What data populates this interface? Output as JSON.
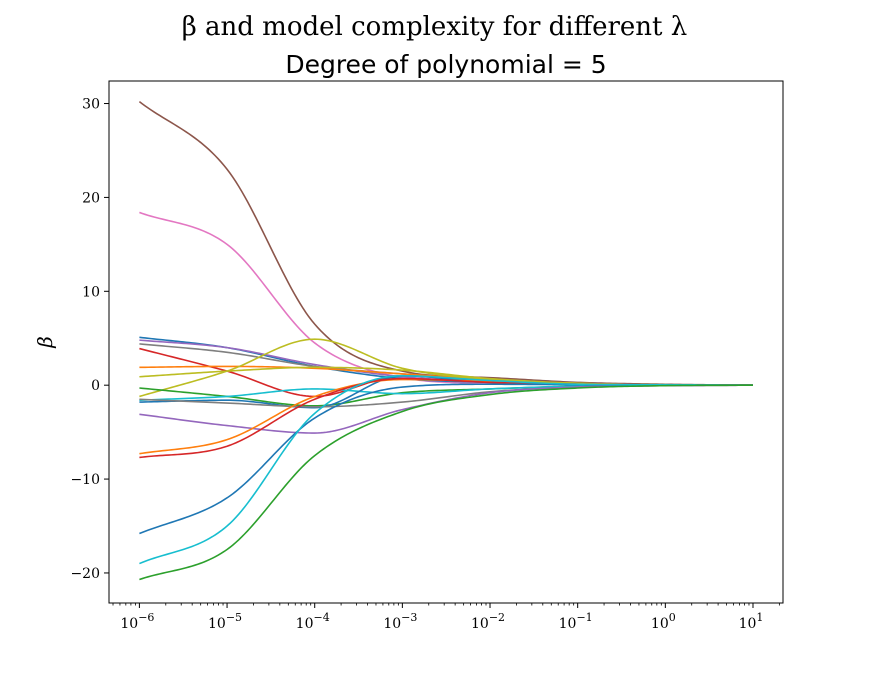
{
  "chart_data": {
    "type": "line",
    "title": "β and model complexity for different λ",
    "subtitle": "Degree of polynomial = 5",
    "xlabel": "",
    "ylabel": "β",
    "xscale": "log",
    "xlim": [
      4.5e-07,
      22
    ],
    "ylim": [
      -23.2,
      32.4
    ],
    "xticks": [
      {
        "base": "10",
        "exp": "−6",
        "value": 1e-06
      },
      {
        "base": "10",
        "exp": "−5",
        "value": 1e-05
      },
      {
        "base": "10",
        "exp": "−4",
        "value": 0.0001
      },
      {
        "base": "10",
        "exp": "−3",
        "value": 0.001
      },
      {
        "base": "10",
        "exp": "−2",
        "value": 0.01
      },
      {
        "base": "10",
        "exp": "−1",
        "value": 0.1
      },
      {
        "base": "10",
        "exp": "0",
        "value": 1
      },
      {
        "base": "10",
        "exp": "1",
        "value": 10
      }
    ],
    "yticks": [
      {
        "label": "30",
        "value": 30
      },
      {
        "label": "20",
        "value": 20
      },
      {
        "label": "10",
        "value": 10
      },
      {
        "label": "0",
        "value": 0
      },
      {
        "label": "−10",
        "value": -10
      },
      {
        "label": "−20",
        "value": -20
      }
    ],
    "grid": false,
    "legend": "none",
    "series": [
      {
        "color": "#8c564b",
        "x": [
          1e-06,
          1e-05,
          0.0001,
          0.001,
          0.01,
          0.1,
          1,
          10
        ],
        "y": [
          30.2,
          23,
          6.5,
          1.5,
          0.8,
          0.3,
          0.1,
          0
        ]
      },
      {
        "color": "#e377c2",
        "x": [
          1e-06,
          1e-05,
          0.0001,
          0.001,
          0.01,
          0.1,
          1,
          10
        ],
        "y": [
          18.4,
          15,
          4.5,
          0.8,
          0.2,
          0.1,
          0.05,
          0
        ]
      },
      {
        "color": "#1f77b4",
        "x": [
          1e-06,
          1e-05,
          0.0001,
          0.001,
          0.01,
          0.1,
          1,
          10
        ],
        "y": [
          5.1,
          4,
          2,
          0.7,
          0.3,
          0.1,
          0.05,
          0
        ]
      },
      {
        "color": "#9467bd",
        "x": [
          1e-06,
          1e-05,
          0.0001,
          0.001,
          0.01,
          0.1,
          1,
          10
        ],
        "y": [
          4.8,
          4,
          2.2,
          0.9,
          0.4,
          0.2,
          0.05,
          0
        ]
      },
      {
        "color": "#7f7f7f",
        "x": [
          1e-06,
          1e-05,
          0.0001,
          0.001,
          0.01,
          0.1,
          1,
          10
        ],
        "y": [
          4.4,
          3.5,
          2,
          1.2,
          0.5,
          0.2,
          0.05,
          0
        ]
      },
      {
        "color": "#d62728",
        "x": [
          1e-06,
          1e-05,
          0.0001,
          0.001,
          0.01,
          0.1,
          1,
          10
        ],
        "y": [
          3.9,
          1.5,
          -1.2,
          1.0,
          0.3,
          0.1,
          0.05,
          0
        ]
      },
      {
        "color": "#ff7f0e",
        "x": [
          1e-06,
          1e-05,
          0.0001,
          0.001,
          0.01,
          0.1,
          1,
          10
        ],
        "y": [
          1.9,
          2.0,
          1.8,
          1.2,
          0.6,
          0.2,
          0.05,
          0
        ]
      },
      {
        "color": "#bcbd22",
        "x": [
          1e-06,
          1e-05,
          0.0001,
          0.001,
          0.01,
          0.1,
          1,
          10
        ],
        "y": [
          -1.2,
          1.5,
          4.9,
          1.8,
          0.6,
          0.2,
          0.05,
          0
        ]
      },
      {
        "color": "#bcbd22",
        "x": [
          1e-06,
          1e-05,
          0.0001,
          0.001,
          0.01,
          0.1,
          1,
          10
        ],
        "y": [
          0.9,
          1.5,
          1.9,
          1.6,
          0.7,
          0.2,
          0.05,
          0
        ]
      },
      {
        "color": "#2ca02c",
        "x": [
          1e-06,
          1e-05,
          0.0001,
          0.001,
          0.01,
          0.1,
          1,
          10
        ],
        "y": [
          -0.3,
          -1.2,
          -2.2,
          -0.8,
          -0.4,
          -0.1,
          0,
          0
        ]
      },
      {
        "color": "#17becf",
        "x": [
          1e-06,
          1e-05,
          0.0001,
          0.001,
          0.01,
          0.1,
          1,
          10
        ],
        "y": [
          -1.6,
          -1.2,
          -0.4,
          -0.9,
          -0.4,
          -0.1,
          0,
          0
        ]
      },
      {
        "color": "#1f77b4",
        "x": [
          1e-06,
          1e-05,
          0.0001,
          0.001,
          0.01,
          0.1,
          1,
          10
        ],
        "y": [
          -1.8,
          -1.6,
          -2.4,
          1.0,
          0.3,
          0.1,
          0.05,
          0
        ]
      },
      {
        "color": "#7f7f7f",
        "x": [
          1e-06,
          1e-05,
          0.0001,
          0.001,
          0.01,
          0.1,
          1,
          10
        ],
        "y": [
          -1.5,
          -1.9,
          -2.3,
          -1.8,
          -0.7,
          -0.2,
          -0.05,
          0
        ]
      },
      {
        "color": "#9467bd",
        "x": [
          1e-06,
          1e-05,
          0.0001,
          0.001,
          0.01,
          0.1,
          1,
          10
        ],
        "y": [
          -3.1,
          -4.3,
          -5.1,
          -2.6,
          -0.8,
          -0.2,
          -0.05,
          0
        ]
      },
      {
        "color": "#ff7f0e",
        "x": [
          1e-06,
          1e-05,
          0.0001,
          0.001,
          0.01,
          0.1,
          1,
          10
        ],
        "y": [
          -7.3,
          -5.8,
          -1.2,
          0.6,
          0.4,
          0.1,
          0.05,
          0
        ]
      },
      {
        "color": "#d62728",
        "x": [
          1e-06,
          1e-05,
          0.0001,
          0.001,
          0.01,
          0.1,
          1,
          10
        ],
        "y": [
          -7.7,
          -6.5,
          -1.5,
          0.7,
          0.3,
          0.1,
          0.05,
          0
        ]
      },
      {
        "color": "#1f77b4",
        "x": [
          1e-06,
          1e-05,
          0.0001,
          0.001,
          0.01,
          0.1,
          1,
          10
        ],
        "y": [
          -15.8,
          -12,
          -3.5,
          -0.2,
          0.1,
          0.05,
          0,
          0
        ]
      },
      {
        "color": "#17becf",
        "x": [
          1e-06,
          1e-05,
          0.0001,
          0.001,
          0.01,
          0.1,
          1,
          10
        ],
        "y": [
          -19,
          -15,
          -3,
          1.0,
          0.5,
          0.1,
          0.05,
          0
        ]
      },
      {
        "color": "#2ca02c",
        "x": [
          1e-06,
          1e-05,
          0.0001,
          0.001,
          0.01,
          0.1,
          1,
          10
        ],
        "y": [
          -20.7,
          -17.5,
          -7.5,
          -2.8,
          -1,
          -0.3,
          -0.05,
          0
        ]
      }
    ]
  }
}
